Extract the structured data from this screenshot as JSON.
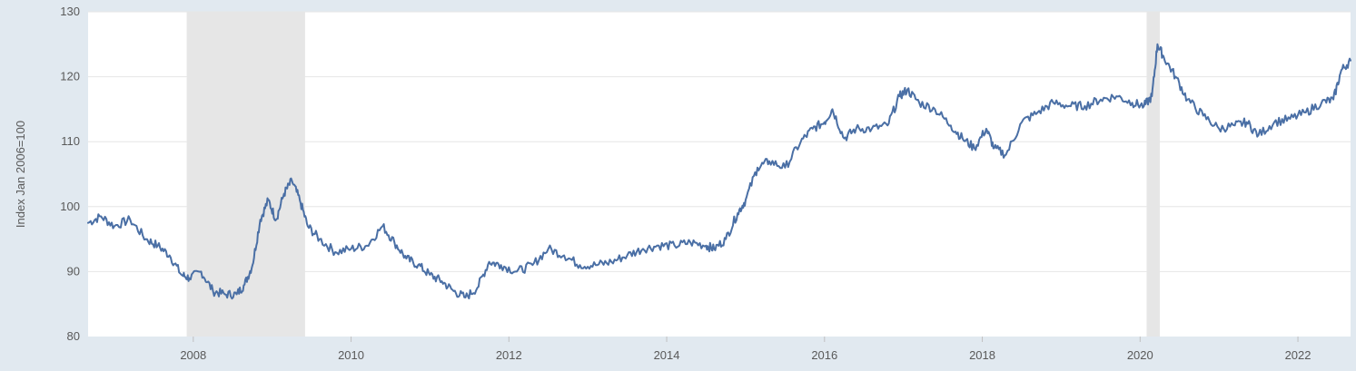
{
  "chart_data": {
    "type": "line",
    "title": "",
    "xlabel": "",
    "ylabel": "Index Jan 2006=100",
    "xlim": [
      2006.667,
      2022.667
    ],
    "ylim": [
      80,
      130
    ],
    "y_ticks": [
      80,
      90,
      100,
      110,
      120,
      130
    ],
    "x_ticks": [
      2008,
      2010,
      2012,
      2014,
      2016,
      2018,
      2020,
      2022
    ],
    "grid": "horizontal",
    "legend": "none",
    "recession_bands": [
      {
        "start": 2007.917,
        "end": 2009.417
      },
      {
        "start": 2020.083,
        "end": 2020.25
      }
    ],
    "colors": {
      "line": "#4a6fa5",
      "plot_bg": "#ffffff",
      "page_bg": "#e1e9f0",
      "recession": "#e6e6e6",
      "grid": "#e6e6e6"
    },
    "series": [
      {
        "x": [
          2006.667,
          2006.83,
          2007.0,
          2007.2,
          2007.4,
          2007.55,
          2007.7,
          2007.85,
          2007.95,
          2008.1,
          2008.25,
          2008.4,
          2008.55,
          2008.65,
          2008.75,
          2008.85,
          2008.95,
          2009.05,
          2009.15,
          2009.25,
          2009.35,
          2009.45,
          2009.6,
          2009.8,
          2010.0,
          2010.2,
          2010.4,
          2010.55,
          2010.7,
          2010.85,
          2011.0,
          2011.15,
          2011.3,
          2011.45,
          2011.6,
          2011.75,
          2011.9,
          2012.1,
          2012.3,
          2012.5,
          2012.7,
          2012.9,
          2013.1,
          2013.3,
          2013.5,
          2013.7,
          2013.9,
          2014.1,
          2014.3,
          2014.5,
          2014.6,
          2014.75,
          2014.9,
          2015.0,
          2015.15,
          2015.3,
          2015.5,
          2015.7,
          2015.85,
          2016.0,
          2016.1,
          2016.25,
          2016.4,
          2016.6,
          2016.8,
          2016.95,
          2017.05,
          2017.2,
          2017.4,
          2017.6,
          2017.75,
          2017.9,
          2018.05,
          2018.15,
          2018.3,
          2018.5,
          2018.7,
          2018.9,
          2019.1,
          2019.3,
          2019.5,
          2019.7,
          2019.9,
          2020.05,
          2020.15,
          2020.22,
          2020.3,
          2020.45,
          2020.6,
          2020.8,
          2021.0,
          2021.2,
          2021.35,
          2021.5,
          2021.7,
          2021.9,
          2022.1,
          2022.3,
          2022.45,
          2022.55,
          2022.667
        ],
        "y": [
          97.5,
          98.5,
          97.0,
          98.0,
          95.0,
          94.0,
          92.5,
          89.5,
          89.0,
          90.0,
          87.0,
          86.5,
          86.5,
          88.0,
          91.0,
          98.0,
          101.0,
          98.0,
          102.0,
          104.0,
          101.0,
          97.0,
          95.0,
          93.0,
          93.5,
          94.0,
          97.0,
          94.5,
          92.0,
          91.0,
          89.5,
          88.5,
          87.0,
          86.0,
          87.5,
          91.5,
          91.0,
          90.0,
          91.0,
          93.5,
          92.5,
          91.0,
          91.0,
          91.5,
          92.5,
          93.5,
          94.0,
          94.0,
          94.5,
          94.0,
          93.5,
          95.0,
          99.0,
          101.0,
          106.0,
          107.0,
          106.0,
          110.0,
          112.0,
          113.0,
          115.0,
          110.5,
          112.0,
          112.0,
          112.5,
          117.0,
          118.0,
          116.0,
          115.0,
          112.5,
          110.5,
          109.0,
          112.0,
          109.0,
          108.0,
          113.0,
          114.5,
          116.0,
          115.5,
          115.5,
          116.5,
          117.0,
          116.0,
          115.5,
          117.0,
          125.0,
          123.0,
          120.0,
          116.5,
          114.0,
          112.0,
          112.5,
          113.0,
          111.0,
          113.0,
          113.5,
          114.5,
          116.0,
          116.5,
          121.0,
          122.5
        ]
      }
    ]
  }
}
